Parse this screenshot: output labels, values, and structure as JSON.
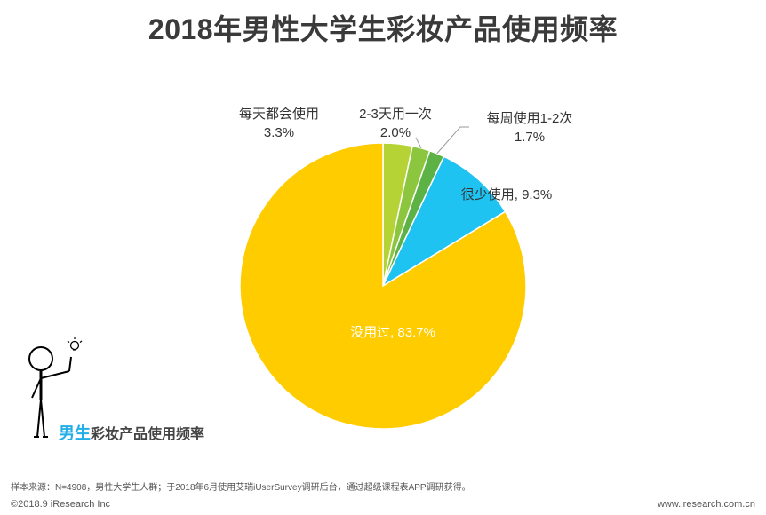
{
  "page": {
    "title": "2018年男性大学生彩妆产品使用频率",
    "caption_highlight": "男生",
    "caption_rest": "彩妆产品使用频率",
    "source": "样本来源：N=4908，男性大学生人群；于2018年6月使用艾瑞iUserSurvey调研后台，通过超级课程表APP调研获得。",
    "copyright": "©2018.9 iResearch Inc",
    "site": "www.iresearch.com.cn"
  },
  "colors": {
    "yellow": "#FFCC00",
    "lime": "#B5D334",
    "light_green": "#8CC63F",
    "green": "#5DB245",
    "cyan": "#1FC3F2",
    "highlight_blue": "#22AEE6"
  },
  "chart_data": {
    "type": "pie",
    "title": "2018年男性大学生彩妆产品使用频率",
    "start_angle_deg": 0,
    "direction": "clockwise",
    "slices": [
      {
        "label": "每天都会使用",
        "value": 3.3,
        "display": "3.3%",
        "color": "#B5D334"
      },
      {
        "label": "2-3天用一次",
        "value": 2.0,
        "display": "2.0%",
        "color": "#8CC63F"
      },
      {
        "label": "每周使用1-2次",
        "value": 1.7,
        "display": "1.7%",
        "color": "#5DB245"
      },
      {
        "label": "很少使用",
        "value": 9.3,
        "display": "9.3%",
        "color": "#1FC3F2"
      },
      {
        "label": "没用过",
        "value": 83.7,
        "display": "83.7%",
        "color": "#FFCC00"
      }
    ]
  }
}
